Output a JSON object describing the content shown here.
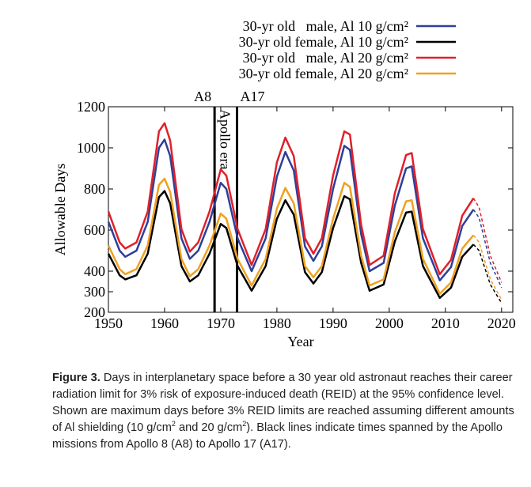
{
  "chart_data": {
    "type": "line",
    "xlabel": "Year",
    "ylabel": "Allowable Days",
    "xlim": [
      1950,
      2022
    ],
    "ylim": [
      200,
      1200
    ],
    "xticks": [
      1950,
      1960,
      1970,
      1980,
      1990,
      2000,
      2010,
      2020
    ],
    "yticks": [
      200,
      300,
      400,
      600,
      800,
      1000,
      1200
    ],
    "dashed_from": 2015,
    "apollo_lines": [
      {
        "x": 1968.9,
        "label": "A8"
      },
      {
        "x": 1972.9,
        "label": "A17"
      }
    ],
    "apollo_label": "Apollo era",
    "x": [
      1950,
      1952,
      1953,
      1955,
      1957,
      1959,
      1960,
      1961,
      1963,
      1964.5,
      1966,
      1968,
      1970,
      1971,
      1973,
      1975.5,
      1978,
      1980,
      1981.5,
      1983,
      1985,
      1986.5,
      1988,
      1990,
      1992,
      1993,
      1995,
      1996.5,
      1999,
      2001,
      2003,
      2004,
      2006,
      2009,
      2011,
      2013,
      2015,
      2016,
      2018,
      2020
    ],
    "series": [
      {
        "name": "30-yr old   male, Al 10 g/cm²",
        "color": "#2e3f9a",
        "values": [
          640,
          500,
          470,
          500,
          640,
          1000,
          1040,
          960,
          560,
          460,
          500,
          640,
          830,
          800,
          560,
          400,
          560,
          860,
          980,
          890,
          520,
          450,
          520,
          800,
          1010,
          990,
          580,
          400,
          440,
          720,
          900,
          910,
          560,
          355,
          420,
          620,
          700,
          660,
          440,
          320
        ]
      },
      {
        "name": "30-yr old female, Al 10 g/cm²",
        "color": "#000000",
        "values": [
          485,
          380,
          360,
          380,
          485,
          760,
          790,
          730,
          425,
          350,
          380,
          485,
          630,
          610,
          425,
          305,
          425,
          655,
          745,
          675,
          395,
          340,
          395,
          610,
          765,
          750,
          440,
          305,
          335,
          545,
          685,
          690,
          425,
          270,
          320,
          470,
          530,
          500,
          335,
          245
        ]
      },
      {
        "name": "30-yr old   male, Al 20 g/cm²",
        "color": "#e0202a",
        "values": [
          690,
          540,
          510,
          540,
          690,
          1080,
          1120,
          1035,
          605,
          495,
          540,
          690,
          895,
          865,
          605,
          430,
          605,
          930,
          1050,
          960,
          560,
          485,
          560,
          865,
          1080,
          1065,
          625,
          430,
          475,
          780,
          965,
          975,
          605,
          385,
          455,
          670,
          755,
          710,
          475,
          345
        ]
      },
      {
        "name": "30-yr old female, Al 20 g/cm²",
        "color": "#f0a020",
        "values": [
          525,
          410,
          385,
          410,
          525,
          820,
          850,
          785,
          460,
          375,
          410,
          525,
          680,
          655,
          460,
          330,
          460,
          705,
          805,
          730,
          425,
          370,
          425,
          655,
          830,
          810,
          475,
          330,
          360,
          590,
          740,
          745,
          460,
          290,
          345,
          510,
          575,
          540,
          360,
          262
        ]
      }
    ]
  },
  "caption": {
    "label": "Figure 3.",
    "parts": [
      " Days in interplanetary space before a 30 year old astronaut reaches their career radiation limit for 3% risk of exposure-induced death (REID) at the 95% confidence level. Shown are maximum days before 3% REID limits are reached assuming different amounts of Al shielding (10 g/cm",
      "2",
      " and 20 g/cm",
      "2",
      "). Black lines indicate times spanned by the Apollo missions from Apollo 8 (A8) to Apollo 17 (A17)."
    ]
  }
}
